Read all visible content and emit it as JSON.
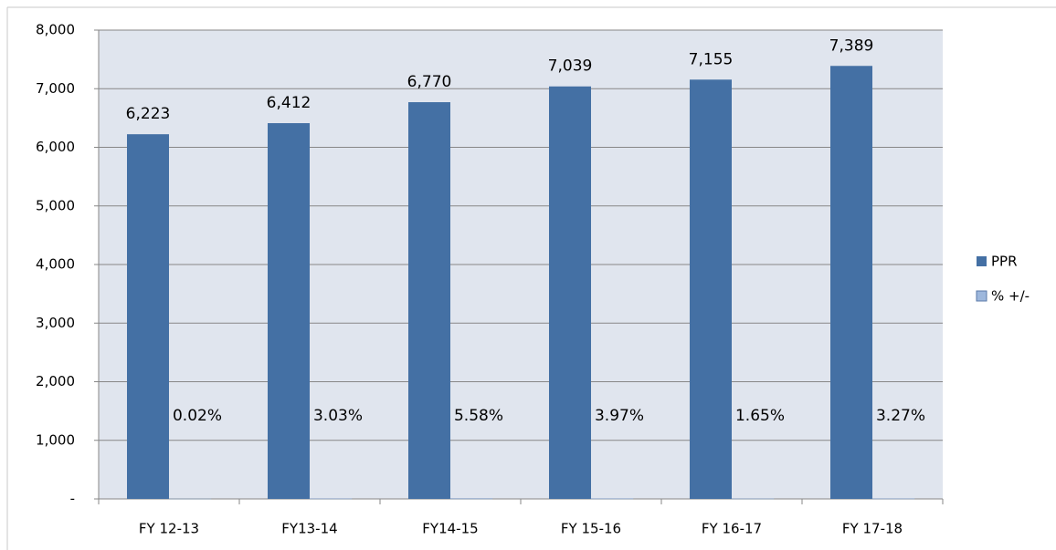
{
  "chart_data": {
    "type": "bar",
    "categories": [
      "FY 12-13",
      "FY13-14",
      "FY14-15",
      "FY 15-16",
      "FY 16-17",
      "FY 17-18"
    ],
    "series": [
      {
        "name": "PPR",
        "color": "#4470a4",
        "values": [
          6223,
          6412,
          6770,
          7039,
          7155,
          7389
        ],
        "value_labels": [
          "6,223",
          "6,412",
          "6,770",
          "7,039",
          "7,155",
          "7,389"
        ]
      },
      {
        "name": "% +/-",
        "color": "#9db7dc",
        "values": [
          0.02,
          3.03,
          5.58,
          3.97,
          1.65,
          3.27
        ],
        "value_labels": [
          "0.02%",
          "3.03%",
          "5.58%",
          "3.97%",
          "1.65%",
          "3.27%"
        ]
      }
    ],
    "ylim": [
      0,
      8000
    ],
    "yticks": [
      {
        "value": 0,
        "label": "-"
      },
      {
        "value": 1000,
        "label": "1,000"
      },
      {
        "value": 2000,
        "label": "2,000"
      },
      {
        "value": 3000,
        "label": "3,000"
      },
      {
        "value": 4000,
        "label": "4,000"
      },
      {
        "value": 5000,
        "label": "5,000"
      },
      {
        "value": 6000,
        "label": "6,000"
      },
      {
        "value": 7000,
        "label": "7,000"
      },
      {
        "value": 8000,
        "label": "8,000"
      }
    ],
    "grid": true,
    "legend": "right"
  }
}
